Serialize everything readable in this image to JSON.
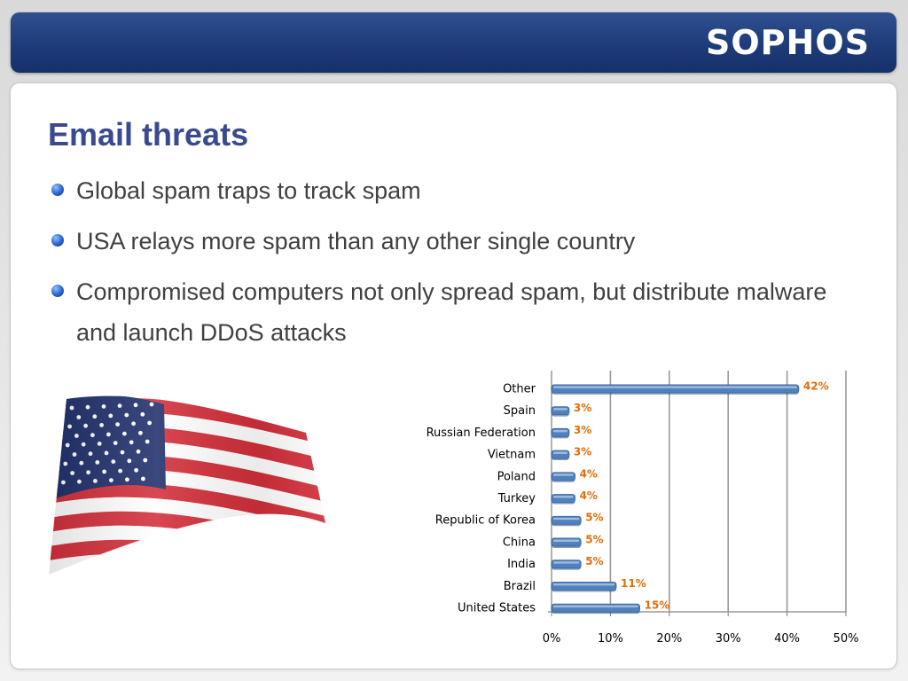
{
  "header": {
    "logo_text": "SOPHOS",
    "bar_color": "#1d3a78"
  },
  "slide": {
    "title": "Email threats",
    "bullets": [
      "Global spam traps to track spam",
      "USA relays more spam than any other single country",
      "Compromised computers not only spread spam, but distribute malware and launch DDoS attacks"
    ]
  },
  "illustration": {
    "name": "us-flag"
  },
  "chart_data": {
    "type": "bar",
    "orientation": "horizontal",
    "categories": [
      "Other",
      "Spain",
      "Russian Federation",
      "Vietnam",
      "Poland",
      "Turkey",
      "Republic of Korea",
      "China",
      "India",
      "Brazil",
      "United States"
    ],
    "values": [
      42,
      3,
      3,
      3,
      4,
      4,
      5,
      5,
      5,
      11,
      15
    ],
    "value_labels": [
      "42%",
      "3%",
      "3%",
      "3%",
      "4%",
      "4%",
      "5%",
      "5%",
      "5%",
      "11%",
      "15%"
    ],
    "xlim": [
      0,
      50
    ],
    "x_ticks": [
      0,
      10,
      20,
      30,
      40,
      50
    ],
    "x_tick_labels": [
      "0%",
      "10%",
      "20%",
      "30%",
      "40%",
      "50%"
    ],
    "bar_color": "#4f81bd",
    "label_color": "#e36c09",
    "grid": true,
    "legend": false
  }
}
